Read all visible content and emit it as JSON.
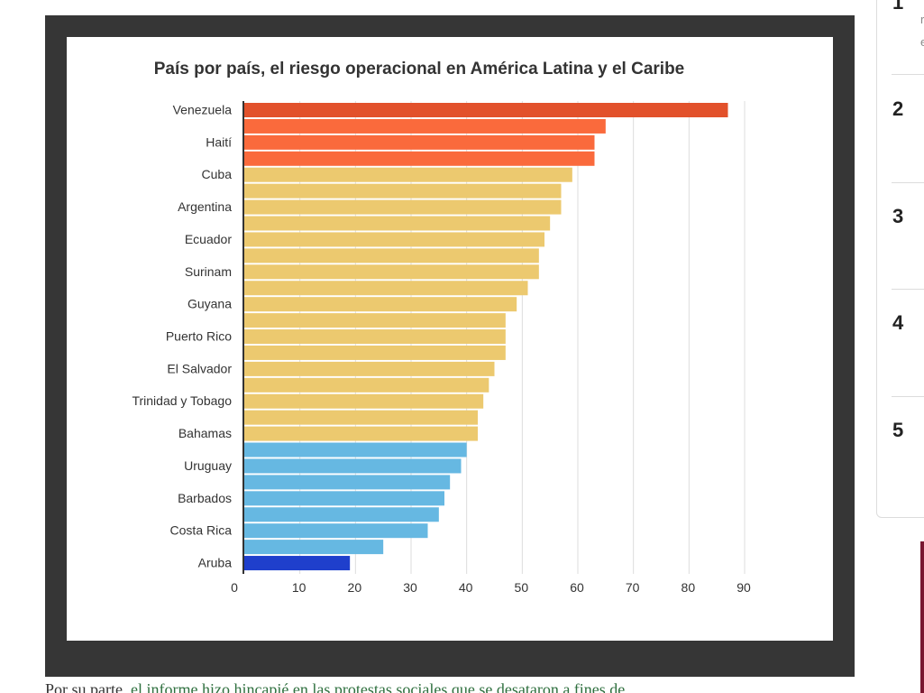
{
  "chart_data": {
    "type": "bar",
    "orientation": "horizontal",
    "title": "País por país, el riesgo operacional en América Latina y el Caribe",
    "xlabel": "",
    "ylabel": "",
    "xlim": [
      0,
      90
    ],
    "xticks": [
      0,
      10,
      20,
      30,
      40,
      50,
      60,
      70,
      80,
      90
    ],
    "grid": "vertical",
    "bars": [
      {
        "label": "Venezuela",
        "value": 87,
        "color": "#e2512b"
      },
      {
        "label": "",
        "value": 65,
        "color": "#fa6a3c"
      },
      {
        "label": "Haití",
        "value": 63,
        "color": "#fa6a3c"
      },
      {
        "label": "",
        "value": 63,
        "color": "#fa6a3c"
      },
      {
        "label": "Cuba",
        "value": 59,
        "color": "#ecc96f"
      },
      {
        "label": "",
        "value": 57,
        "color": "#ecc96f"
      },
      {
        "label": "Argentina",
        "value": 57,
        "color": "#ecc96f"
      },
      {
        "label": "",
        "value": 55,
        "color": "#ecc96f"
      },
      {
        "label": "Ecuador",
        "value": 54,
        "color": "#ecc96f"
      },
      {
        "label": "",
        "value": 53,
        "color": "#ecc96f"
      },
      {
        "label": "Surinam",
        "value": 53,
        "color": "#ecc96f"
      },
      {
        "label": "",
        "value": 51,
        "color": "#ecc96f"
      },
      {
        "label": "Guyana",
        "value": 49,
        "color": "#ecc96f"
      },
      {
        "label": "",
        "value": 47,
        "color": "#ecc96f"
      },
      {
        "label": "Puerto Rico",
        "value": 47,
        "color": "#ecc96f"
      },
      {
        "label": "",
        "value": 47,
        "color": "#ecc96f"
      },
      {
        "label": "El Salvador",
        "value": 45,
        "color": "#ecc96f"
      },
      {
        "label": "",
        "value": 44,
        "color": "#ecc96f"
      },
      {
        "label": "Trinidad y Tobago",
        "value": 43,
        "color": "#ecc96f"
      },
      {
        "label": "",
        "value": 42,
        "color": "#ecc96f"
      },
      {
        "label": "Bahamas",
        "value": 42,
        "color": "#ecc96f"
      },
      {
        "label": "",
        "value": 40,
        "color": "#66b8e2"
      },
      {
        "label": "Uruguay",
        "value": 39,
        "color": "#66b8e2"
      },
      {
        "label": "",
        "value": 37,
        "color": "#66b8e2"
      },
      {
        "label": "Barbados",
        "value": 36,
        "color": "#66b8e2"
      },
      {
        "label": "",
        "value": 35,
        "color": "#66b8e2"
      },
      {
        "label": "Costa Rica",
        "value": 33,
        "color": "#66b8e2"
      },
      {
        "label": "",
        "value": 25,
        "color": "#66b8e2"
      },
      {
        "label": "Aruba",
        "value": 19,
        "color": "#1f3fcc"
      }
    ]
  },
  "sidebar": {
    "items": [
      {
        "number": "1",
        "fragment_1": "r",
        "fragment_2": "e"
      },
      {
        "number": "2"
      },
      {
        "number": "3"
      },
      {
        "number": "4"
      },
      {
        "number": "5"
      }
    ]
  },
  "article": {
    "text_before_link": "Por su parte, ",
    "link_text": "el informe hizo hincapié en las protestas sociales que se desataron a fines de"
  }
}
